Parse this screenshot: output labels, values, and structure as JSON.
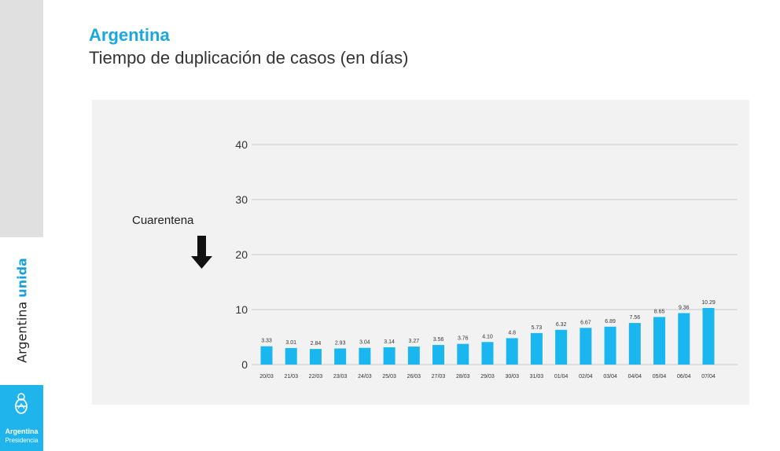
{
  "sidebar": {
    "brand_part1": "Argentina",
    "brand_part2": "unida",
    "logo_title": "Argentina",
    "logo_subtitle": "Presidencia"
  },
  "header": {
    "title": "Argentina",
    "subtitle": "Tiempo de duplicación de casos (en días)"
  },
  "annotation": {
    "label": "Cuarentena",
    "icon": "arrow-down-icon"
  },
  "colors": {
    "accent": "#1aa7e0",
    "bar": "#1ab6ef",
    "panel": "#f2f2f2",
    "sidebar_gray": "#e0e0e0",
    "logo_bg": "#1fb4ec"
  },
  "chart_data": {
    "type": "bar",
    "categories": [
      "20/03",
      "21/03",
      "22/03",
      "23/03",
      "24/03",
      "25/03",
      "26/03",
      "27/03",
      "28/03",
      "29/03",
      "30/03",
      "31/03",
      "01/04",
      "02/04",
      "03/04",
      "04/04",
      "05/04",
      "06/04",
      "07/04"
    ],
    "values": [
      3.33,
      3.01,
      2.84,
      2.93,
      3.04,
      3.14,
      3.27,
      3.56,
      3.76,
      4.1,
      4.8,
      5.73,
      6.32,
      6.67,
      6.89,
      7.56,
      8.65,
      9.36,
      10.29
    ],
    "value_labels": [
      "3.33",
      "3.01",
      "2.84",
      "2.93",
      "3.04",
      "3.14",
      "3.27",
      "3.56",
      "3.76",
      "4.10",
      "4.8",
      "5.73",
      "6.32",
      "6.67",
      "6.89",
      "7.56",
      "8.65",
      "9.36",
      "10.29"
    ],
    "yticks": [
      "0",
      "10",
      "20",
      "30",
      "40"
    ],
    "ylim": [
      0,
      40
    ],
    "grid": true,
    "title": "Tiempo de duplicación de casos (en días)",
    "xlabel": "",
    "ylabel": ""
  }
}
